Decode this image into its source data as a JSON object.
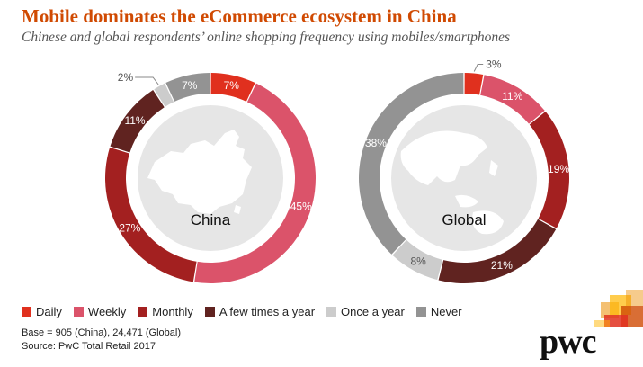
{
  "title": "Mobile dominates the eCommerce ecosystem in China",
  "subtitle": "Chinese and global respondents’ online shopping frequency using mobiles/smartphones",
  "colors": {
    "Daily": "#e0301e",
    "Weekly": "#db536a",
    "Monthly": "#a32020",
    "A few times a year": "#602320",
    "Once a year": "#cccccc",
    "Never": "#939393",
    "brand": "#d04a02"
  },
  "chart_data": [
    {
      "type": "pie",
      "donut": true,
      "center_label": "China",
      "categories": [
        "Daily",
        "Weekly",
        "Monthly",
        "A few times a year",
        "Once a year",
        "Never"
      ],
      "values": [
        7,
        45,
        27,
        11,
        2,
        7
      ],
      "labels": [
        "7%",
        "45%",
        "27%",
        "11%",
        "2%",
        "7%"
      ],
      "center_image": "china-map-icon"
    },
    {
      "type": "pie",
      "donut": true,
      "center_label": "Global",
      "categories": [
        "Daily",
        "Weekly",
        "Monthly",
        "A few times a year",
        "Once a year",
        "Never"
      ],
      "values": [
        3,
        11,
        19,
        21,
        8,
        38
      ],
      "labels": [
        "3%",
        "11%",
        "19%",
        "21%",
        "8%",
        "38%"
      ],
      "center_image": "globe-asia-icon"
    }
  ],
  "legend": [
    "Daily",
    "Weekly",
    "Monthly",
    "A few times a year",
    "Once a year",
    "Never"
  ],
  "footnotes": {
    "base": "Base = 905 (China), 24,471 (Global)",
    "source": "Source: PwC Total Retail 2017"
  },
  "logo": {
    "text": "pwc",
    "icon": "pwc-logo-icon"
  }
}
